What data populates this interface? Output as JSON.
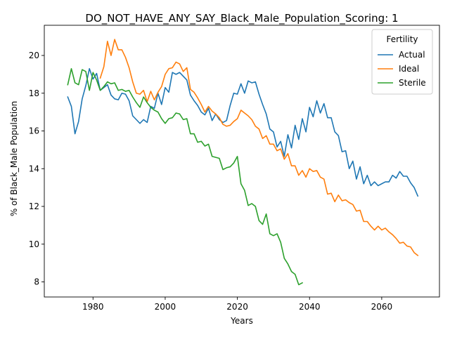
{
  "chart_data": {
    "type": "line",
    "title": "DO_NOT_HAVE_ANY_SAY_Black_Male_Population_Scoring: 1",
    "xlabel": "Years",
    "ylabel": "% of Black_Male Population",
    "xlim": [
      1966.5,
      2076
    ],
    "ylim": [
      7.2,
      21.6
    ],
    "xticks": [
      1980,
      2000,
      2020,
      2040,
      2060
    ],
    "yticks": [
      8,
      10,
      12,
      14,
      16,
      18,
      20
    ],
    "grid": false,
    "legend": {
      "title": "Fertility",
      "position": "top-right"
    },
    "series": [
      {
        "name": "Actual",
        "color": "#1f77b4",
        "x": [
          1973,
          1974,
          1975,
          1976,
          1977,
          1978,
          1979,
          1980,
          1981,
          1982,
          1983,
          1984,
          1985,
          1986,
          1987,
          1988,
          1989,
          1990,
          1991,
          1992,
          1993,
          1994,
          1995,
          1996,
          1997,
          1998,
          1999,
          2000,
          2001,
          2002,
          2003,
          2004,
          2005,
          2006,
          2007,
          2008,
          2009,
          2010,
          2011,
          2012,
          2013,
          2014,
          2015,
          2016,
          2017,
          2018,
          2019,
          2020,
          2021,
          2022,
          2023,
          2024,
          2025,
          2026,
          2027,
          2028,
          2029,
          2030,
          2031,
          2032,
          2033,
          2034,
          2035,
          2036,
          2037,
          2038,
          2039,
          2040,
          2041,
          2042,
          2043,
          2044,
          2045,
          2046,
          2047,
          2048,
          2049,
          2050,
          2051,
          2052,
          2053,
          2054,
          2055,
          2056,
          2057,
          2058,
          2059,
          2060,
          2061,
          2062,
          2063,
          2064,
          2065,
          2066,
          2067,
          2068,
          2069,
          2070
        ],
        "values": [
          17.8,
          17.3,
          15.85,
          16.5,
          17.7,
          18.4,
          19.3,
          18.75,
          19.05,
          18.15,
          18.3,
          18.45,
          17.9,
          17.7,
          17.65,
          18.0,
          17.95,
          17.6,
          16.8,
          16.6,
          16.4,
          16.6,
          16.45,
          17.3,
          17.2,
          18.0,
          17.4,
          18.3,
          18.05,
          19.1,
          19.0,
          19.1,
          18.9,
          18.7,
          17.9,
          17.6,
          17.35,
          17.0,
          16.85,
          17.2,
          16.55,
          16.9,
          16.6,
          16.45,
          16.55,
          17.35,
          18.0,
          17.95,
          18.5,
          18.0,
          18.65,
          18.55,
          18.6,
          17.95,
          17.4,
          16.9,
          16.1,
          15.95,
          15.15,
          15.45,
          14.65,
          15.8,
          15.1,
          16.3,
          15.55,
          16.65,
          15.95,
          17.25,
          16.75,
          17.6,
          16.95,
          17.45,
          16.7,
          16.7,
          15.95,
          15.75,
          14.9,
          14.95,
          14.0,
          14.4,
          13.45,
          14.1,
          13.2,
          13.65,
          13.1,
          13.3,
          13.1,
          13.2,
          13.3,
          13.3,
          13.65,
          13.5,
          13.85,
          13.6,
          13.6,
          13.25,
          13.0,
          12.55
        ]
      },
      {
        "name": "Ideal",
        "color": "#ff7f0e",
        "x": [
          1982,
          1983,
          1984,
          1985,
          1986,
          1987,
          1988,
          1989,
          1990,
          1991,
          1992,
          1993,
          1994,
          1995,
          1996,
          1997,
          1998,
          1999,
          2000,
          2001,
          2002,
          2003,
          2004,
          2005,
          2006,
          2007,
          2008,
          2009,
          2010,
          2011,
          2012,
          2013,
          2014,
          2015,
          2016,
          2017,
          2018,
          2019,
          2020,
          2021,
          2022,
          2023,
          2024,
          2025,
          2026,
          2027,
          2028,
          2029,
          2030,
          2031,
          2032,
          2033,
          2034,
          2035,
          2036,
          2037,
          2038,
          2039,
          2040,
          2041,
          2042,
          2043,
          2044,
          2045,
          2046,
          2047,
          2048,
          2049,
          2050,
          2051,
          2052,
          2053,
          2054,
          2055,
          2056,
          2057,
          2058,
          2059,
          2060,
          2061,
          2062,
          2063,
          2064,
          2065,
          2066,
          2067,
          2068,
          2069,
          2070
        ],
        "values": [
          18.8,
          19.4,
          20.75,
          20.0,
          20.85,
          20.3,
          20.3,
          19.9,
          19.35,
          18.6,
          18.0,
          17.95,
          18.15,
          17.55,
          18.1,
          17.65,
          18.05,
          18.35,
          19.0,
          19.3,
          19.35,
          19.65,
          19.55,
          19.15,
          19.35,
          18.2,
          18.05,
          17.75,
          17.4,
          17.0,
          17.3,
          17.05,
          16.9,
          16.7,
          16.35,
          16.25,
          16.3,
          16.5,
          16.65,
          17.1,
          16.95,
          16.8,
          16.6,
          16.25,
          16.1,
          15.6,
          15.75,
          15.3,
          15.3,
          14.95,
          15.05,
          14.5,
          14.8,
          14.15,
          14.15,
          13.65,
          13.9,
          13.55,
          14.0,
          13.85,
          13.9,
          13.55,
          13.45,
          12.65,
          12.7,
          12.25,
          12.6,
          12.3,
          12.35,
          12.2,
          12.1,
          11.75,
          11.8,
          11.2,
          11.2,
          10.95,
          10.75,
          10.95,
          10.75,
          10.85,
          10.65,
          10.5,
          10.3,
          10.05,
          10.1,
          9.9,
          9.85,
          9.55,
          9.4
        ]
      },
      {
        "name": "Sterile",
        "color": "#2ca02c",
        "x": [
          1973,
          1974,
          1975,
          1976,
          1977,
          1978,
          1979,
          1980,
          1981,
          1982,
          1983,
          1984,
          1985,
          1986,
          1987,
          1988,
          1989,
          1990,
          1991,
          1992,
          1993,
          1994,
          1995,
          1996,
          1997,
          1998,
          1999,
          2000,
          2001,
          2002,
          2003,
          2004,
          2005,
          2006,
          2007,
          2008,
          2009,
          2010,
          2011,
          2012,
          2013,
          2014,
          2015,
          2016,
          2017,
          2018,
          2019,
          2020,
          2021,
          2022,
          2023,
          2024,
          2025,
          2026,
          2027,
          2028,
          2029,
          2030,
          2031,
          2032,
          2033,
          2034,
          2035,
          2036,
          2037,
          2038
        ],
        "values": [
          18.45,
          19.3,
          18.55,
          18.45,
          19.25,
          19.15,
          18.15,
          19.1,
          18.7,
          18.15,
          18.35,
          18.6,
          18.5,
          18.55,
          18.15,
          18.2,
          18.1,
          18.15,
          17.8,
          17.5,
          17.25,
          17.8,
          17.5,
          17.25,
          17.1,
          17.0,
          16.65,
          16.4,
          16.65,
          16.7,
          16.95,
          16.9,
          16.6,
          16.65,
          15.85,
          15.85,
          15.4,
          15.45,
          15.2,
          15.3,
          14.65,
          14.6,
          14.55,
          13.95,
          14.05,
          14.1,
          14.3,
          14.65,
          13.2,
          12.85,
          12.05,
          12.15,
          12.0,
          11.25,
          11.05,
          11.6,
          10.55,
          10.45,
          10.55,
          10.1,
          9.25,
          8.95,
          8.55,
          8.4,
          7.85,
          7.95
        ]
      }
    ]
  }
}
